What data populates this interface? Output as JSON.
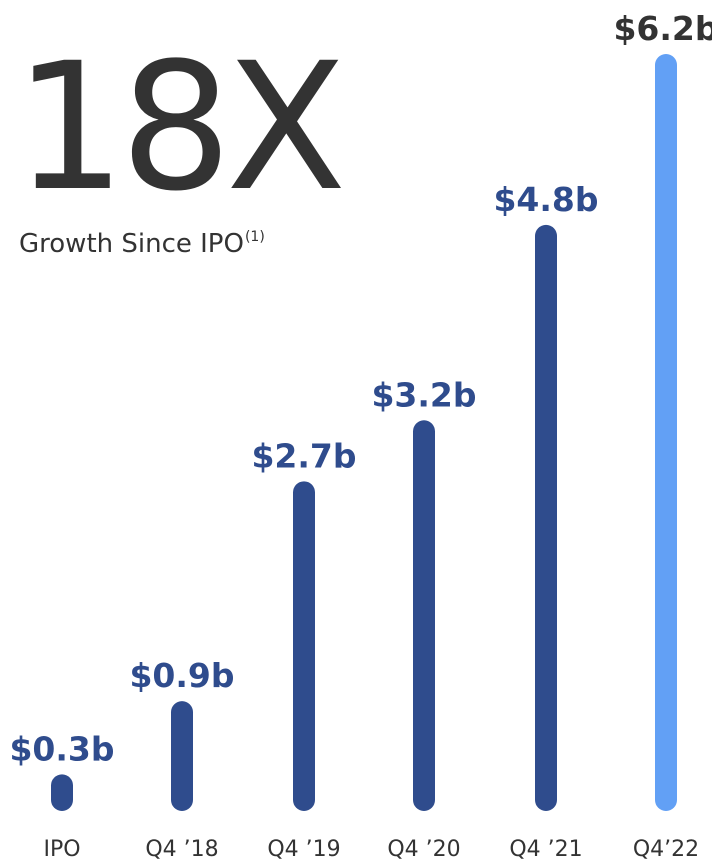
{
  "headline": {
    "value": "18X",
    "caption": "Growth Since IPO",
    "footnote": "(1)"
  },
  "chart_data": {
    "type": "bar",
    "categories": [
      "IPO",
      "Q4 ’18",
      "Q4 ’19",
      "Q4 ’20",
      "Q4 ’21",
      "Q4’22"
    ],
    "values": [
      0.3,
      0.9,
      2.7,
      3.2,
      4.8,
      6.2
    ],
    "data_labels": [
      "$0.3b",
      "$0.9b",
      "$2.7b",
      "$3.2b",
      "$4.8b",
      "$6.2b"
    ],
    "title": "",
    "xlabel": "",
    "ylabel": "",
    "ylim": [
      0,
      6.2
    ],
    "grid": false,
    "colors": {
      "default_bar": "#2f4c8d",
      "highlight_bar": "#62a0f5",
      "default_label": "#2f4c8d",
      "highlight_label": "#333333"
    },
    "highlight_index": 5
  }
}
